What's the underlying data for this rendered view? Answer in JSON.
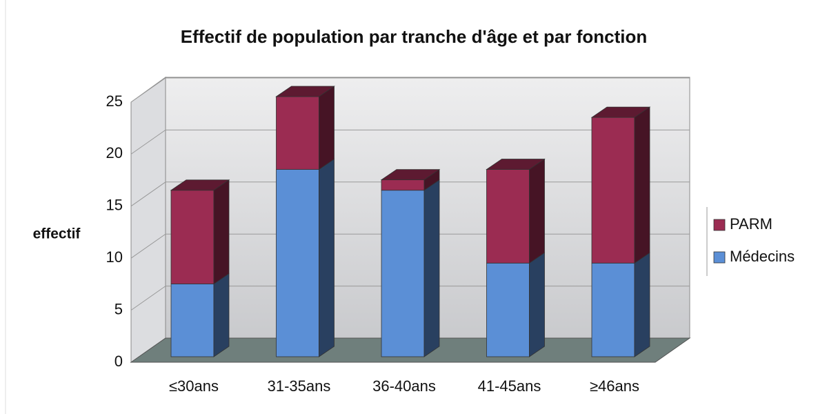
{
  "chart_data": {
    "type": "bar3d_stacked",
    "title": "Effectif de population par tranche d'âge et par fonction",
    "y_label": "effectif",
    "categories": [
      "≤30ans",
      "31-35ans",
      "36-40ans",
      "41-45ans",
      "≥46ans"
    ],
    "series": [
      {
        "name": "Médecins",
        "color": "#5b8fd6",
        "values": [
          7,
          18,
          16,
          9,
          9
        ]
      },
      {
        "name": "PARM",
        "color": "#9b2c52",
        "values": [
          9,
          7,
          1,
          9,
          14
        ]
      }
    ],
    "ylim": [
      0,
      25
    ],
    "yticks": [
      0,
      5,
      10,
      15,
      20,
      25
    ],
    "grid": true,
    "legend": "right"
  }
}
